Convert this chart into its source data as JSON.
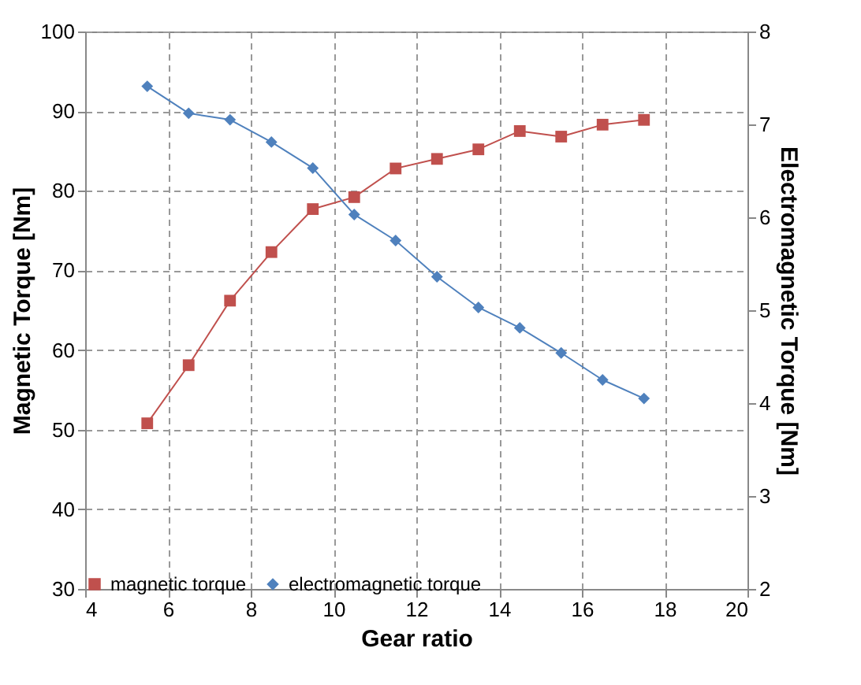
{
  "chart_data": {
    "type": "line",
    "xlabel": "Gear ratio",
    "ylabel": "Magnetic Torque [Nm]",
    "y2label": "Electromagnetic Torque [Nm]",
    "xlim": [
      4,
      20
    ],
    "xticks": [
      4,
      6,
      8,
      10,
      12,
      14,
      16,
      18,
      20
    ],
    "ylim": [
      30,
      100
    ],
    "yticks": [
      30,
      40,
      50,
      60,
      70,
      80,
      90,
      100
    ],
    "y2lim": [
      2,
      8
    ],
    "y2ticks": [
      2,
      3,
      4,
      5,
      6,
      7,
      8
    ],
    "grid": true,
    "legend": "bottom",
    "x": [
      5.5,
      6.5,
      7.5,
      8.5,
      9.5,
      10.5,
      11.5,
      12.5,
      13.5,
      14.5,
      15.5,
      16.5,
      17.5
    ],
    "series": [
      {
        "name": "magnetic torque",
        "color": "#c0504d",
        "marker": "square",
        "values": [
          50.8,
          58.1,
          66.2,
          72.3,
          77.7,
          79.2,
          82.8,
          84.0,
          85.2,
          87.5,
          86.8,
          88.3,
          88.9
        ]
      },
      {
        "name": "electromagnetic torque",
        "color": "#4f81bd",
        "marker": "diamond",
        "axis": "y2",
        "values": [
          7.41,
          7.12,
          7.05,
          6.81,
          6.53,
          6.03,
          5.75,
          5.36,
          5.03,
          4.81,
          4.54,
          4.25,
          4.05
        ]
      }
    ]
  }
}
